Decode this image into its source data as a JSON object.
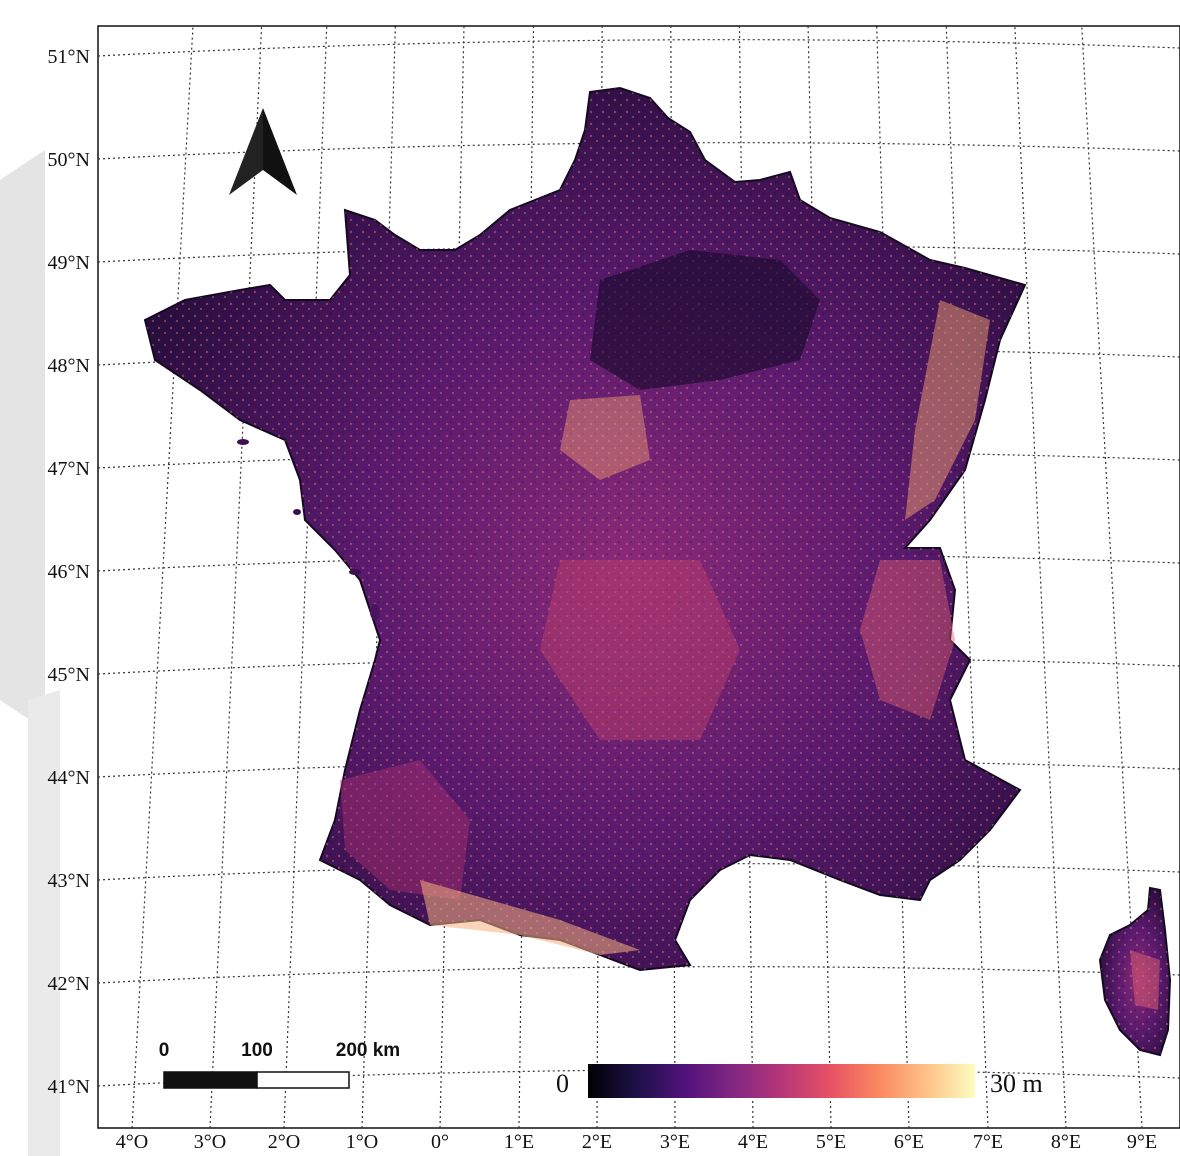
{
  "map": {
    "latitude_labels": [
      "51°N",
      "50°N",
      "49°N",
      "48°N",
      "47°N",
      "46°N",
      "45°N",
      "44°N",
      "43°N",
      "42°N",
      "41°N"
    ],
    "longitude_labels": [
      "4°O",
      "3°O",
      "2°O",
      "1°O",
      "0°",
      "1°E",
      "2°E",
      "3°E",
      "4°E",
      "5°E",
      "6°E",
      "7°E",
      "8°E",
      "9°E"
    ],
    "scale_bar": {
      "labels": [
        "0",
        "100",
        "200 km"
      ]
    },
    "colorbar": {
      "min_label": "0",
      "max_label": "30 m",
      "colormap": "magma",
      "colors": [
        "#000004",
        "#1d1147",
        "#51127c",
        "#822681",
        "#b63679",
        "#e65164",
        "#fb8861",
        "#fec287",
        "#fcfdbf"
      ]
    },
    "north_arrow": "north-arrow-icon",
    "colors": {
      "land_dark": "#1a0a2e",
      "land_mid": "#5a1a6e",
      "land_pink": "#c0406a",
      "land_light": "#f2a070",
      "grid": "#333333"
    }
  }
}
